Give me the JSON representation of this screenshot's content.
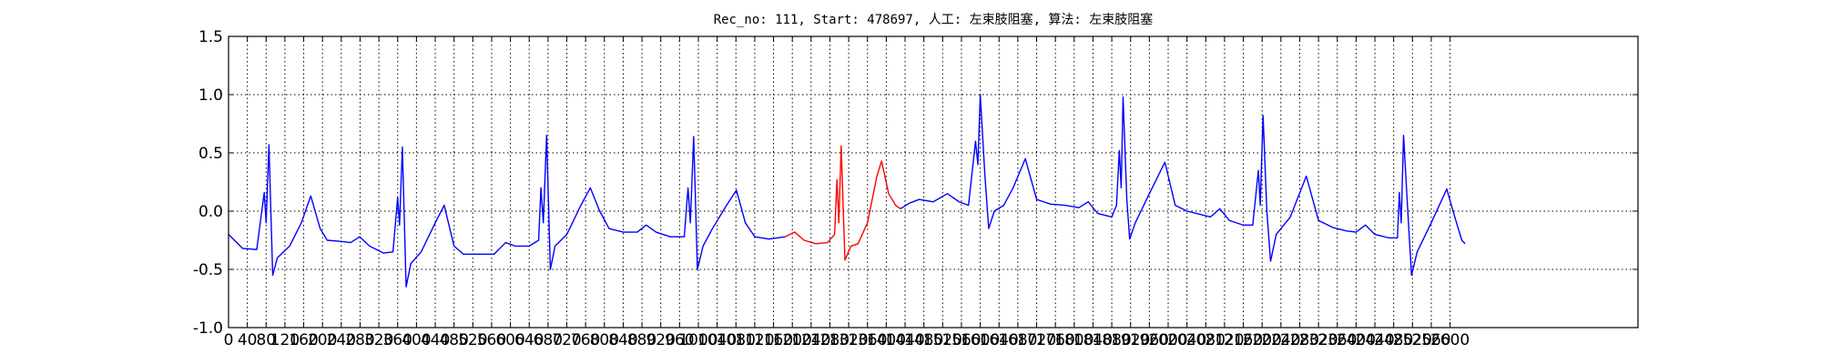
{
  "chart_data": {
    "type": "line",
    "title": "Rec_no: 111, Start: 478697, 人工: 左束肢阻塞, 算法: 左束肢阻塞",
    "xlim": [
      0,
      3000
    ],
    "ylim": [
      -1.0,
      1.5
    ],
    "xticks": [
      0,
      40,
      80,
      120,
      160,
      200,
      240,
      280,
      320,
      360,
      400,
      440,
      480,
      520,
      560,
      600,
      640,
      680,
      720,
      760,
      800,
      840,
      880,
      920,
      960,
      1000,
      1040,
      1080,
      1120,
      1160,
      1200,
      1240,
      1280,
      1320,
      1360,
      1400,
      1440,
      1480,
      1520,
      1560,
      1600,
      1640,
      1680,
      1720,
      1760,
      1800,
      1840,
      1880,
      1920,
      1960,
      2000,
      2040,
      2080,
      2120,
      2160,
      2200,
      2240,
      2280,
      2320,
      2360,
      2400,
      2440,
      2480,
      2520,
      2560,
      2600
    ],
    "yticks": [
      {
        "value": -1.0,
        "label": "-1.0"
      },
      -0.5,
      {
        "value": 0.0,
        "label": "0.0"
      },
      0.5,
      {
        "value": 1.0,
        "label": "1.0"
      },
      1.5
    ],
    "grid": true,
    "series": [
      {
        "color": "#0000ff",
        "x": [
          0,
          30,
          60,
          76,
          80,
          86,
          94,
          104,
          130,
          155,
          175,
          195,
          210,
          240,
          260,
          279,
          300,
          330,
          350,
          360,
          364,
          370,
          378,
          388,
          410,
          440,
          459,
          480,
          500,
          540,
          565,
          590,
          610,
          640,
          660,
          665,
          670,
          677,
          685,
          695,
          720,
          750,
          770,
          790,
          810,
          840,
          870,
          889,
          910,
          940,
          970,
          978,
          983,
          990,
          998,
          1010,
          1030,
          1060,
          1081,
          1100,
          1120,
          1150,
          1185
        ],
        "values": [
          -0.2,
          -0.32,
          -0.33,
          0.16,
          -0.1,
          0.57,
          -0.55,
          -0.4,
          -0.3,
          -0.1,
          0.13,
          -0.15,
          -0.25,
          -0.26,
          -0.27,
          -0.22,
          -0.3,
          -0.36,
          -0.35,
          0.12,
          -0.12,
          0.55,
          -0.65,
          -0.45,
          -0.35,
          -0.1,
          0.05,
          -0.3,
          -0.37,
          -0.37,
          -0.37,
          -0.27,
          -0.3,
          -0.3,
          -0.25,
          0.2,
          -0.1,
          0.65,
          -0.5,
          -0.3,
          -0.2,
          0.05,
          0.2,
          0,
          -0.15,
          -0.18,
          -0.18,
          -0.12,
          -0.18,
          -0.22,
          -0.22,
          0.2,
          -0.1,
          0.64,
          -0.5,
          -0.3,
          -0.15,
          0.05,
          0.18,
          -0.1,
          -0.22,
          -0.24,
          -0.22
        ]
      },
      {
        "color": "#ff0000",
        "x": [
          1185,
          1205,
          1225,
          1250,
          1275,
          1290,
          1295,
          1299,
          1304,
          1312,
          1325,
          1340,
          1360,
          1380,
          1390,
          1405,
          1420,
          1430
        ],
        "values": [
          -0.22,
          -0.18,
          -0.25,
          -0.28,
          -0.27,
          -0.2,
          0.27,
          -0.1,
          0.56,
          -0.42,
          -0.3,
          -0.28,
          -0.1,
          0.3,
          0.43,
          0.15,
          0.05,
          0.02
        ]
      },
      {
        "color": "#0000ff",
        "x": [
          1430,
          1450,
          1470,
          1500,
          1530,
          1555,
          1575,
          1590,
          1595,
          1600,
          1610,
          1618,
          1630,
          1650,
          1670,
          1696,
          1720,
          1750,
          1780,
          1810,
          1830,
          1850,
          1880,
          1890,
          1896,
          1900,
          1904,
          1912,
          1918,
          1930,
          1960,
          1993,
          2015,
          2040,
          2070,
          2090,
          2110,
          2130,
          2160,
          2180,
          2192,
          2196,
          2202,
          2210,
          2218,
          2230,
          2260,
          2294,
          2320,
          2350,
          2380,
          2400,
          2420,
          2440,
          2470,
          2488,
          2492,
          2496,
          2501,
          2510,
          2518,
          2530,
          2560,
          2593,
          2610,
          2625,
          2632
        ],
        "values": [
          0.02,
          0.07,
          0.1,
          0.08,
          0.15,
          0.08,
          0.05,
          0.6,
          0.4,
          1.0,
          0.3,
          -0.15,
          0.0,
          0.05,
          0.2,
          0.45,
          0.1,
          0.06,
          0.05,
          0.03,
          0.08,
          -0.02,
          -0.05,
          0.05,
          0.52,
          0.2,
          0.98,
          0.1,
          -0.24,
          -0.1,
          0.15,
          0.42,
          0.05,
          0.0,
          -0.03,
          -0.05,
          0.02,
          -0.08,
          -0.12,
          -0.12,
          0.35,
          0.05,
          0.82,
          0.0,
          -0.43,
          -0.2,
          -0.05,
          0.3,
          -0.08,
          -0.14,
          -0.17,
          -0.18,
          -0.12,
          -0.2,
          -0.23,
          -0.23,
          0.16,
          -0.1,
          0.65,
          0.0,
          -0.55,
          -0.35,
          -0.1,
          0.19,
          -0.05,
          -0.25,
          -0.28
        ]
      }
    ]
  }
}
